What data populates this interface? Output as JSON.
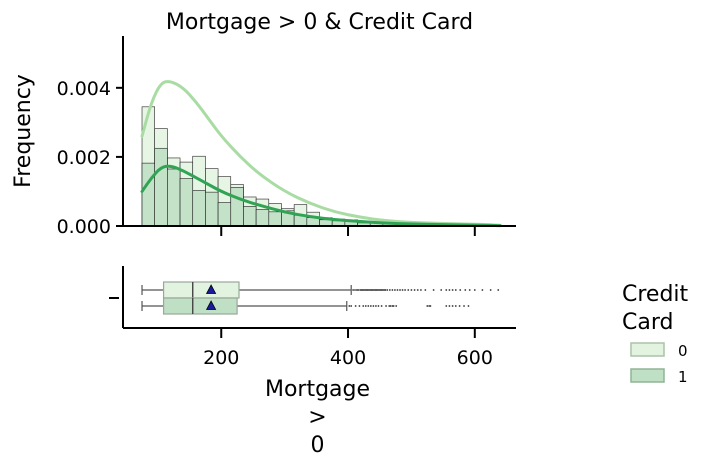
{
  "chart_data": [
    {
      "type": "histogram",
      "title": "Mortgage > 0 & Credit Card",
      "xlabel": "",
      "ylabel": "Frequency",
      "xlim": [
        45,
        665
      ],
      "ylim": [
        0,
        0.0055
      ],
      "yticks": [
        0,
        0.002,
        0.004
      ],
      "ytick_labels": [
        "0.000",
        "0.002",
        "0.004"
      ],
      "grid": false,
      "bin_edges": [
        75,
        95,
        115,
        135,
        155,
        175,
        195,
        215,
        235,
        255,
        275,
        295,
        315,
        335,
        355,
        375,
        395,
        415,
        435,
        455,
        475,
        495,
        515,
        535,
        555,
        575,
        595,
        615,
        635
      ],
      "series": [
        {
          "name": "0",
          "color": "#a8dca2",
          "fill": "#e2f3df",
          "values": [
            0.00345,
            0.00282,
            0.00197,
            0.00185,
            0.00202,
            0.00166,
            0.00143,
            0.0012,
            0.00084,
            0.00078,
            0.00065,
            0.0005,
            0.00062,
            0.0004,
            0.00024,
            0.0002,
            0.00018,
            0.00014,
            8e-05,
            7e-05,
            5e-05,
            4e-05,
            3e-05,
            3e-05,
            6e-05,
            5e-05,
            3e-05,
            2e-05
          ],
          "kde_x": [
            75,
            90,
            105,
            120,
            140,
            160,
            180,
            200,
            230,
            260,
            300,
            340,
            380,
            420,
            460,
            500,
            540,
            580,
            620,
            640
          ],
          "kde_y": [
            0.0026,
            0.0036,
            0.00415,
            0.0042,
            0.004,
            0.0036,
            0.0031,
            0.0026,
            0.002,
            0.0015,
            0.001,
            0.00065,
            0.0004,
            0.00025,
            0.00015,
            0.0001,
            8e-05,
            6e-05,
            4e-05,
            2e-05
          ]
        },
        {
          "name": "1",
          "color": "#31a354",
          "fill": "#bfe0c4",
          "values": [
            0.00182,
            0.00225,
            0.00165,
            0.00137,
            0.00103,
            0.00098,
            0.00068,
            0.00112,
            0.00057,
            0.00048,
            0.00041,
            0.00044,
            0.00031,
            0.00024,
            0.00018,
            0.00015,
            0.00015,
            9e-05,
            9e-05,
            6e-05,
            4e-05,
            2e-05,
            5e-05,
            3e-05,
            1e-05,
            1e-05,
            1e-05,
            1e-05
          ],
          "kde_x": [
            75,
            90,
            105,
            120,
            140,
            160,
            180,
            200,
            230,
            260,
            300,
            340,
            380,
            420,
            460,
            500,
            540,
            580,
            620,
            640
          ],
          "kde_y": [
            0.001,
            0.0014,
            0.0017,
            0.00175,
            0.0016,
            0.0014,
            0.0012,
            0.001,
            0.00077,
            0.0006,
            0.0004,
            0.00027,
            0.00018,
            0.00013,
            8e-05,
            6e-05,
            4e-05,
            3e-05,
            2e-05,
            1e-05
          ]
        }
      ]
    },
    {
      "type": "boxplot",
      "xlabel": "Mortgage\n>\n0",
      "xlim": [
        45,
        665
      ],
      "xticks": [
        200,
        400,
        600
      ],
      "xtick_labels": [
        "200",
        "400",
        "600"
      ],
      "grid": false,
      "series": [
        {
          "name": "0",
          "color": "#e2f3df",
          "min": 75,
          "q1": 109,
          "median": 155,
          "q3": 228,
          "max": 405,
          "mean": 184,
          "outliers": [
            408,
            411,
            414,
            416,
            419,
            421,
            423,
            425,
            427,
            429,
            431,
            433,
            435,
            437,
            439,
            441,
            443,
            445,
            447,
            449,
            451,
            453,
            455,
            457,
            459,
            462,
            466,
            470,
            474,
            478,
            482,
            486,
            490,
            495,
            500,
            505,
            510,
            515,
            522,
            535,
            547,
            555,
            560,
            565,
            570,
            577,
            585,
            592,
            600,
            612,
            625,
            637
          ]
        },
        {
          "name": "1",
          "color": "#bfe0c4",
          "min": 75,
          "q1": 109,
          "median": 155,
          "q3": 225,
          "max": 398,
          "mean": 184,
          "outliers": [
            402,
            405,
            412,
            418,
            424,
            428,
            432,
            436,
            440,
            444,
            448,
            453,
            460,
            465,
            467,
            470,
            472,
            476,
            525,
            528,
            530,
            555,
            560,
            565,
            570,
            576,
            583,
            590
          ]
        }
      ]
    }
  ],
  "legend": {
    "title": "Credit\nCard",
    "placement": "right",
    "items": [
      {
        "label": "0",
        "color": "#e2f3df",
        "edge": "#a9c4a7"
      },
      {
        "label": "1",
        "color": "#bfe0c4",
        "edge": "#90b396"
      }
    ]
  }
}
